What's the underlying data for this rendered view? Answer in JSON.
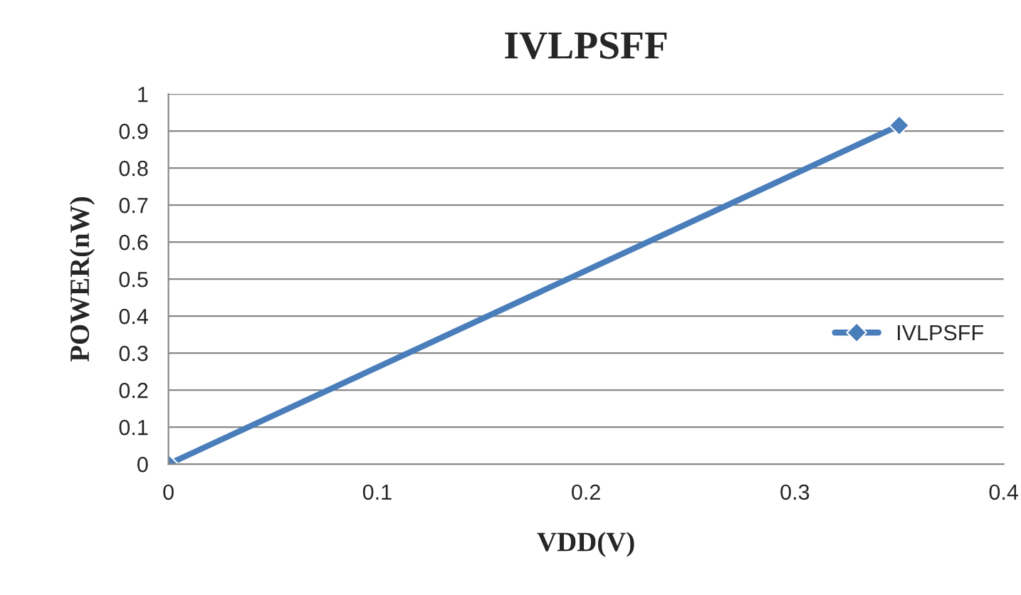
{
  "chart_data": {
    "type": "line",
    "title": "IVLPSFF",
    "xlabel": "VDD(V)",
    "ylabel": "POWER(nW)",
    "x": [
      0,
      0.35
    ],
    "series": [
      {
        "name": "IVLPSFF",
        "color": "#4a7ebb",
        "values": [
          0,
          0.915
        ]
      }
    ],
    "xlim": [
      0,
      0.4
    ],
    "xticks": [
      0,
      0.1,
      0.2,
      0.3,
      0.4
    ],
    "ylim": [
      0,
      1
    ],
    "yticks": [
      0,
      0.1,
      0.2,
      0.3,
      0.4,
      0.5,
      0.6,
      0.7,
      0.8,
      0.9,
      1
    ],
    "grid": "y",
    "legend": "right",
    "marker": "diamond",
    "line_style": "solid"
  }
}
